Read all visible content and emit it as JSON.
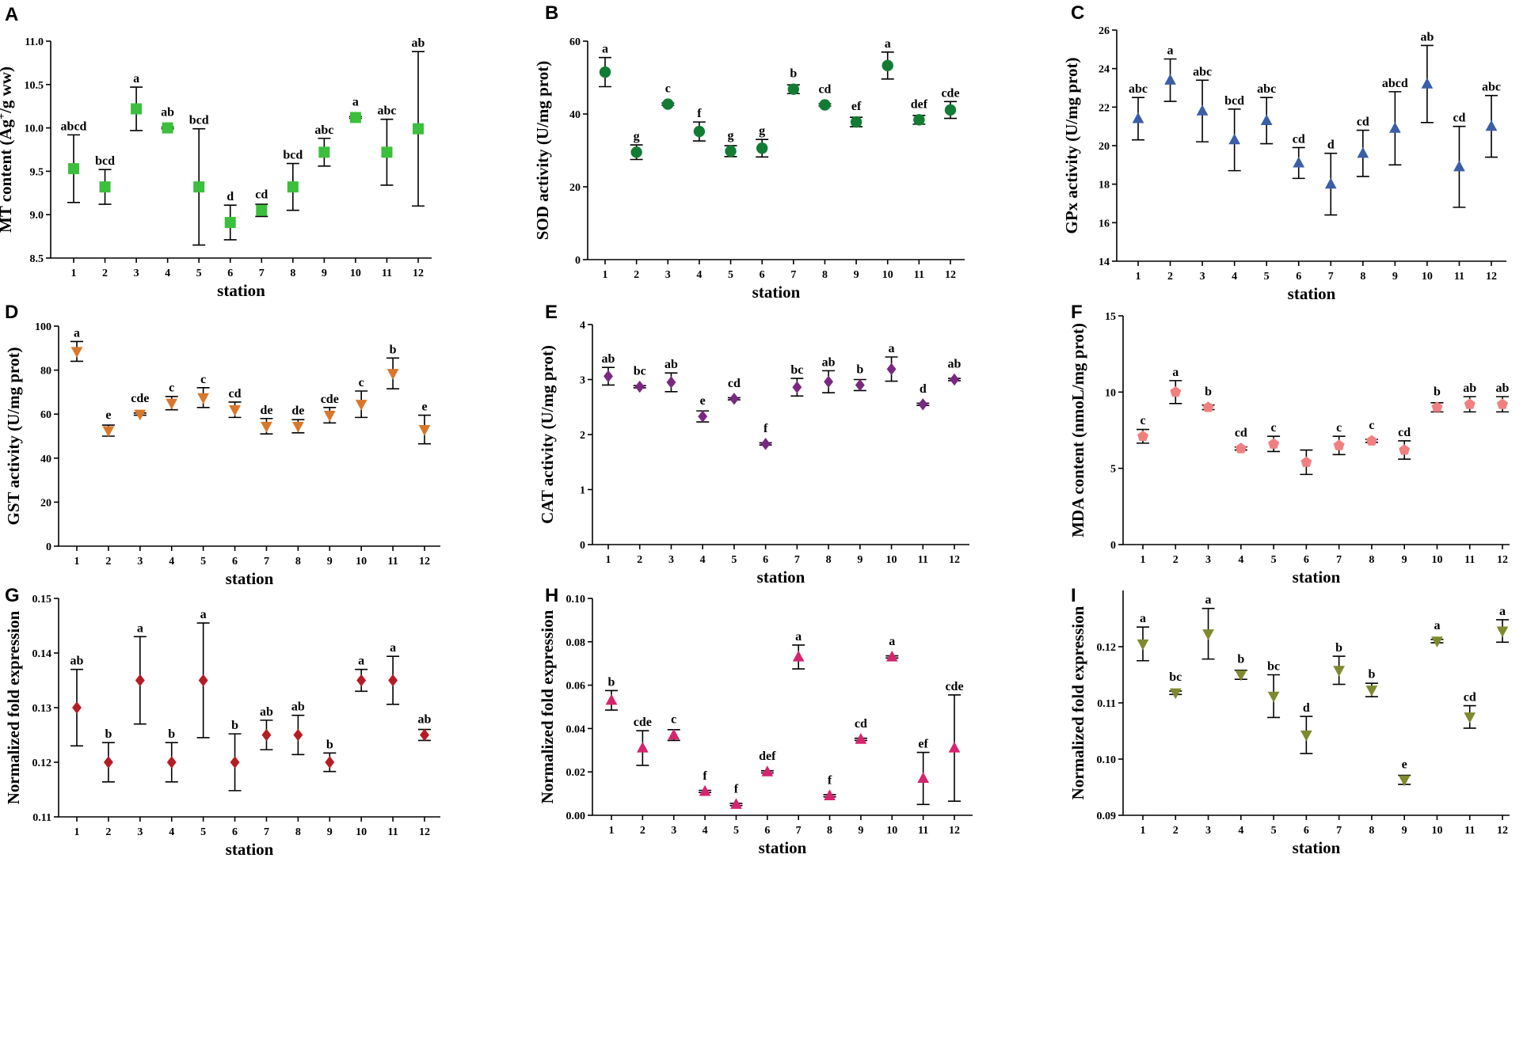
{
  "chart_data": [
    {
      "panel": "A",
      "type": "scatter",
      "marker": "square",
      "color": "#3cbf3c",
      "ylabel": "MT content (Ag+/g ww)",
      "ylabel_main": "MT content (Ag",
      "ylabel_sup": "+",
      "ylabel_tail": "/g ww)",
      "xlabel": "station",
      "categories": [
        "1",
        "2",
        "3",
        "4",
        "5",
        "6",
        "7",
        "8",
        "9",
        "10",
        "11",
        "12"
      ],
      "ylim": [
        8.5,
        11.0
      ],
      "yticks": [
        "8.5",
        "9.0",
        "9.5",
        "10.0",
        "10.5",
        "11.0"
      ],
      "values": [
        9.53,
        9.32,
        10.22,
        10.0,
        9.32,
        8.91,
        9.05,
        9.32,
        9.72,
        10.12,
        9.72,
        9.99
      ],
      "errors": [
        0.39,
        0.2,
        0.25,
        0.01,
        0.67,
        0.2,
        0.07,
        0.27,
        0.16,
        0.01,
        0.38,
        0.89
      ],
      "labels": [
        "abcd",
        "bcd",
        "a",
        "ab",
        "bcd",
        "d",
        "cd",
        "bcd",
        "abc",
        "a",
        "abc",
        "ab"
      ]
    },
    {
      "panel": "B",
      "type": "scatter",
      "marker": "circle",
      "color": "#137c34",
      "ylabel": "SOD activity (U/mg prot)",
      "xlabel": "station",
      "categories": [
        "1",
        "2",
        "3",
        "4",
        "5",
        "6",
        "7",
        "8",
        "9",
        "10",
        "11",
        "12"
      ],
      "ylim": [
        0,
        60
      ],
      "yticks": [
        "0",
        "20",
        "40",
        "60"
      ],
      "values": [
        51.5,
        29.5,
        42.7,
        35.2,
        29.8,
        30.6,
        46.8,
        42.5,
        37.8,
        53.3,
        38.4,
        41.1
      ],
      "errors": [
        4.0,
        2.0,
        0.3,
        2.6,
        1.5,
        2.4,
        1.2,
        0.3,
        1.3,
        3.7,
        1.2,
        2.3
      ],
      "labels": [
        "a",
        "g",
        "c",
        "f",
        "g",
        "g",
        "b",
        "cd",
        "ef",
        "a",
        "def",
        "cde"
      ]
    },
    {
      "panel": "C",
      "type": "scatter",
      "marker": "triangle",
      "color": "#3a5ea8",
      "ylabel": "GPx activity (U/mg prot)",
      "xlabel": "station",
      "categories": [
        "1",
        "2",
        "3",
        "4",
        "5",
        "6",
        "7",
        "8",
        "9",
        "10",
        "11",
        "12"
      ],
      "ylim": [
        14,
        26
      ],
      "yticks": [
        "14",
        "16",
        "18",
        "20",
        "22",
        "24",
        "26"
      ],
      "values": [
        21.4,
        23.4,
        21.8,
        20.3,
        21.3,
        19.1,
        18.0,
        19.6,
        20.9,
        23.2,
        18.9,
        21.0
      ],
      "errors": [
        1.1,
        1.1,
        1.6,
        1.6,
        1.2,
        0.8,
        1.6,
        1.2,
        1.9,
        2.0,
        2.1,
        1.6
      ],
      "labels": [
        "abc",
        "a",
        "abc",
        "bcd",
        "abc",
        "cd",
        "d",
        "cd",
        "abcd",
        "ab",
        "cd",
        "abc"
      ]
    },
    {
      "panel": "D",
      "type": "scatter",
      "marker": "triangle-down",
      "color": "#d9772a",
      "ylabel": "GST activity (U/mg prot)",
      "xlabel": "station",
      "categories": [
        "1",
        "2",
        "3",
        "4",
        "5",
        "6",
        "7",
        "8",
        "9",
        "10",
        "11",
        "12"
      ],
      "ylim": [
        0,
        100
      ],
      "yticks": [
        "0",
        "20",
        "40",
        "60",
        "80",
        "100"
      ],
      "values": [
        88.5,
        52.5,
        60.0,
        65.0,
        67.5,
        62.0,
        54.5,
        54.5,
        59.5,
        64.5,
        78.5,
        53.0
      ],
      "errors": [
        4.5,
        2.5,
        0.5,
        3.0,
        4.5,
        3.5,
        3.5,
        3.0,
        3.5,
        6.0,
        7.0,
        6.5
      ],
      "labels": [
        "a",
        "e",
        "cde",
        "c",
        "c",
        "cd",
        "de",
        "de",
        "cde",
        "c",
        "b",
        "e"
      ]
    },
    {
      "panel": "E",
      "type": "scatter",
      "marker": "diamond",
      "color": "#7b2882",
      "ylabel": "CAT activity (U/mg prot)",
      "xlabel": "station",
      "categories": [
        "1",
        "2",
        "3",
        "4",
        "5",
        "6",
        "7",
        "8",
        "9",
        "10",
        "11",
        "12"
      ],
      "ylim": [
        0,
        4
      ],
      "yticks": [
        "0",
        "1",
        "2",
        "3",
        "4"
      ],
      "values": [
        3.06,
        2.87,
        2.95,
        2.33,
        2.65,
        1.83,
        2.86,
        2.96,
        2.9,
        3.19,
        2.55,
        3.0
      ],
      "errors": [
        0.16,
        0.02,
        0.17,
        0.1,
        0.02,
        0.02,
        0.16,
        0.2,
        0.1,
        0.22,
        0.02,
        0.02
      ],
      "labels": [
        "ab",
        "bc",
        "ab",
        "e",
        "cd",
        "f",
        "bc",
        "ab",
        "b",
        "a",
        "d",
        "ab"
      ]
    },
    {
      "panel": "F",
      "type": "scatter",
      "marker": "pentagon",
      "color": "#f08080",
      "ylabel": "MDA content (nmoL/mg prot)",
      "xlabel": "station",
      "categories": [
        "1",
        "2",
        "3",
        "4",
        "5",
        "6",
        "7",
        "8",
        "9",
        "10",
        "11",
        "12"
      ],
      "ylim": [
        0,
        15
      ],
      "yticks": [
        "0",
        "5",
        "10",
        "15"
      ],
      "values": [
        7.1,
        10.0,
        9.0,
        6.3,
        6.6,
        5.4,
        6.5,
        6.8,
        6.2,
        9.0,
        9.2,
        9.2
      ],
      "errors": [
        0.45,
        0.75,
        0.15,
        0.1,
        0.5,
        0.8,
        0.6,
        0.1,
        0.6,
        0.3,
        0.5,
        0.5
      ],
      "labels": [
        "c",
        "a",
        "b",
        "cd",
        "c",
        "",
        "c",
        "c",
        "cd",
        "b",
        "ab",
        "ab"
      ]
    },
    {
      "panel": "G",
      "type": "scatter",
      "marker": "diamond",
      "color": "#b51d24",
      "ylabel": "Normalized fold expression",
      "xlabel": "station",
      "categories": [
        "1",
        "2",
        "3",
        "4",
        "5",
        "6",
        "7",
        "8",
        "9",
        "10",
        "11",
        "12"
      ],
      "ylim": [
        0.11,
        0.15
      ],
      "yticks": [
        "0.11",
        "0.12",
        "0.13",
        "0.14",
        "0.15"
      ],
      "values": [
        0.13,
        0.12,
        0.135,
        0.12,
        0.135,
        0.12,
        0.125,
        0.125,
        0.12,
        0.135,
        0.135,
        0.125
      ],
      "errors": [
        0.007,
        0.0036,
        0.008,
        0.0036,
        0.0105,
        0.0052,
        0.0027,
        0.0036,
        0.0017,
        0.002,
        0.0044,
        0.001
      ],
      "labels": [
        "ab",
        "b",
        "a",
        "b",
        "a",
        "b",
        "ab",
        "ab",
        "b",
        "a",
        "a",
        "ab"
      ]
    },
    {
      "panel": "H",
      "type": "scatter",
      "marker": "triangle",
      "color": "#d6246e",
      "ylabel": "Normalized fold expression",
      "xlabel": "station",
      "categories": [
        "1",
        "2",
        "3",
        "4",
        "5",
        "6",
        "7",
        "8",
        "9",
        "10",
        "11",
        "12"
      ],
      "ylim": [
        0.0,
        0.1
      ],
      "yticks": [
        "0.00",
        "0.02",
        "0.04",
        "0.06",
        "0.08",
        "0.10"
      ],
      "values": [
        0.053,
        0.031,
        0.037,
        0.011,
        0.005,
        0.02,
        0.073,
        0.009,
        0.035,
        0.073,
        0.017,
        0.031
      ],
      "errors": [
        0.0045,
        0.008,
        0.0025,
        0.0005,
        0.0005,
        0.0005,
        0.0055,
        0.0005,
        0.0005,
        0.0005,
        0.012,
        0.0245
      ],
      "labels": [
        "b",
        "cde",
        "c",
        "f",
        "f",
        "def",
        "a",
        "f",
        "cd",
        "a",
        "ef",
        "cde"
      ]
    },
    {
      "panel": "I",
      "type": "scatter",
      "marker": "triangle-down",
      "color": "#7f8a2f",
      "ylabel": "Normalized fold expression",
      "xlabel": "station",
      "categories": [
        "1",
        "2",
        "3",
        "4",
        "5",
        "6",
        "7",
        "8",
        "9",
        "10",
        "11",
        "12"
      ],
      "ylim": [
        0.09,
        0.13
      ],
      "yticks": [
        "0.09",
        "0.10",
        "0.11",
        "0.12"
      ],
      "values": [
        0.1205,
        0.1118,
        0.1223,
        0.115,
        0.1112,
        0.1043,
        0.1158,
        0.1123,
        0.0963,
        0.121,
        0.1075,
        0.1228
      ],
      "errors": [
        0.003,
        0.0003,
        0.0045,
        0.0008,
        0.0038,
        0.0033,
        0.0025,
        0.0012,
        0.0008,
        0.0003,
        0.002,
        0.002
      ],
      "labels": [
        "a",
        "bc",
        "a",
        "b",
        "bc",
        "d",
        "b",
        "b",
        "e",
        "a",
        "cd",
        "a"
      ]
    }
  ]
}
